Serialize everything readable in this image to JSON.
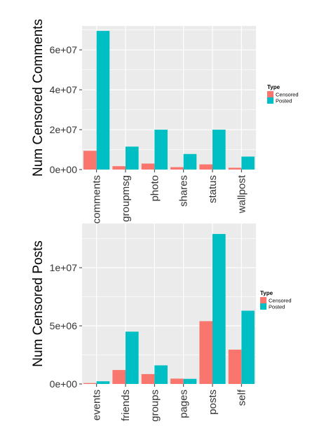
{
  "colors": {
    "censored": "#F8766D",
    "posted": "#00BFC4",
    "panel": "#EBEBEB",
    "grid": "#FFFFFF"
  },
  "legend": {
    "title": "Type",
    "placement": "right"
  },
  "chart_data": [
    {
      "type": "bar",
      "ylabel": "Num Censored Comments",
      "categories": [
        "comments",
        "groupmsg",
        "photo",
        "shares",
        "status",
        "wallpost"
      ],
      "ylim": [
        0,
        72000000
      ],
      "yticks": [
        0,
        20000000,
        40000000,
        60000000
      ],
      "ytick_labels": [
        "0e+00",
        "2e+07",
        "4e+07",
        "6e+07"
      ],
      "grid": true,
      "series": [
        {
          "name": "Censored",
          "values": [
            9400000,
            1700000,
            3000000,
            1200000,
            2600000,
            900000
          ]
        },
        {
          "name": "Posted",
          "values": [
            69500000,
            11500000,
            20000000,
            7800000,
            20000000,
            6500000
          ]
        }
      ]
    },
    {
      "type": "bar",
      "ylabel": "Num Censored Posts",
      "categories": [
        "events",
        "friends",
        "groups",
        "pages",
        "posts",
        "self"
      ],
      "ylim": [
        0,
        13800000
      ],
      "yticks": [
        0,
        5000000,
        10000000
      ],
      "ytick_labels": [
        "0e+00",
        "5e+06",
        "1e+07"
      ],
      "grid": true,
      "series": [
        {
          "name": "Censored",
          "values": [
            80000,
            1200000,
            850000,
            460000,
            5400000,
            2950000
          ]
        },
        {
          "name": "Posted",
          "values": [
            230000,
            4500000,
            1600000,
            440000,
            12900000,
            6300000
          ]
        }
      ]
    }
  ]
}
